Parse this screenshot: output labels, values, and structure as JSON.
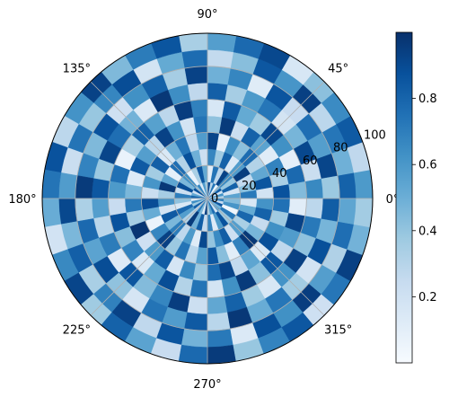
{
  "chart_data": {
    "type": "heatmap",
    "subtype": "polar",
    "colormap": "Blues",
    "title": "",
    "theta_ticks": [
      "0°",
      "45°",
      "90°",
      "135°",
      "180°",
      "225°",
      "270°",
      "315°"
    ],
    "r_ticks": [
      "0",
      "20",
      "40",
      "60",
      "80",
      "100"
    ],
    "rlim": [
      0,
      100
    ],
    "r_edges": [
      0,
      10,
      20,
      30,
      40,
      50,
      60,
      70,
      80,
      90,
      100
    ],
    "theta_bins": 36,
    "theta_bin_width_deg": 10,
    "colorbar": {
      "ticks": [
        "0.2",
        "0.4",
        "0.6",
        "0.8"
      ],
      "tick_values": [
        0.2,
        0.4,
        0.6,
        0.8
      ],
      "range": [
        0.0,
        1.0
      ],
      "position": "right"
    },
    "grid": true,
    "values": [
      [
        0.31,
        0.62,
        0.18,
        0.84,
        0.47,
        0.05,
        0.73,
        0.29,
        0.91,
        0.36,
        0.58,
        0.14,
        0.67,
        0.42,
        0.88,
        0.21,
        0.53,
        0.79,
        0.09,
        0.64,
        0.37,
        0.82,
        0.26,
        0.71,
        0.45,
        0.12,
        0.94,
        0.33,
        0.56,
        0.77,
        0.19,
        0.61,
        0.48,
        0.86,
        0.24,
        0.69
      ],
      [
        0.55,
        0.17,
        0.81,
        0.39,
        0.66,
        0.93,
        0.28,
        0.74,
        0.11,
        0.52,
        0.85,
        0.34,
        0.07,
        0.63,
        0.46,
        0.89,
        0.22,
        0.7,
        0.41,
        0.15,
        0.78,
        0.57,
        0.32,
        0.96,
        0.49,
        0.83,
        0.25,
        0.68,
        0.13,
        0.59,
        0.87,
        0.38,
        0.72,
        0.04,
        0.61,
        0.44
      ],
      [
        0.72,
        0.43,
        0.26,
        0.95,
        0.58,
        0.14,
        0.81,
        0.37,
        0.67,
        0.22,
        0.49,
        0.88,
        0.31,
        0.76,
        0.09,
        0.54,
        0.97,
        0.35,
        0.62,
        0.18,
        0.84,
        0.46,
        0.71,
        0.27,
        0.59,
        0.12,
        0.91,
        0.4,
        0.65,
        0.83,
        0.21,
        0.57,
        0.34,
        0.79,
        0.52,
        0.16
      ],
      [
        0.19,
        0.86,
        0.53,
        0.31,
        0.77,
        0.42,
        0.64,
        0.08,
        0.92,
        0.58,
        0.27,
        0.73,
        0.49,
        0.15,
        0.82,
        0.36,
        0.61,
        0.23,
        0.89,
        0.51,
        0.06,
        0.67,
        0.94,
        0.38,
        0.74,
        0.29,
        0.56,
        0.85,
        0.43,
        0.11,
        0.69,
        0.97,
        0.47,
        0.25,
        0.81,
        0.62
      ],
      [
        0.87,
        0.34,
        0.68,
        0.12,
        0.55,
        0.81,
        0.23,
        0.96,
        0.41,
        0.74,
        0.18,
        0.62,
        0.93,
        0.29,
        0.57,
        0.84,
        0.13,
        0.46,
        0.72,
        0.35,
        0.98,
        0.21,
        0.59,
        0.83,
        0.17,
        0.66,
        0.39,
        0.77,
        0.92,
        0.26,
        0.54,
        0.14,
        0.88,
        0.63,
        0.37,
        0.75
      ],
      [
        0.44,
        0.78,
        0.09,
        0.63,
        0.91,
        0.37,
        0.52,
        0.84,
        0.16,
        0.69,
        0.95,
        0.28,
        0.56,
        0.81,
        0.34,
        0.07,
        0.75,
        0.59,
        0.24,
        0.87,
        0.43,
        0.68,
        0.15,
        0.52,
        0.89,
        0.31,
        0.74,
        0.18,
        0.63,
        0.96,
        0.42,
        0.85,
        0.27,
        0.58,
        0.93,
        0.11
      ],
      [
        0.66,
        0.23,
        0.91,
        0.47,
        0.18,
        0.73,
        0.59,
        0.35,
        0.82,
        0.27,
        0.64,
        0.97,
        0.14,
        0.48,
        0.76,
        0.92,
        0.38,
        0.85,
        0.57,
        0.29,
        0.71,
        0.13,
        0.86,
        0.44,
        0.67,
        0.95,
        0.22,
        0.53,
        0.81,
        0.37,
        0.16,
        0.62,
        0.94,
        0.41,
        0.72,
        0.28
      ],
      [
        0.38,
        0.92,
        0.57,
        0.76,
        0.24,
        0.86,
        0.12,
        0.67,
        0.49,
        0.93,
        0.35,
        0.81,
        0.63,
        0.21,
        0.87,
        0.45,
        0.68,
        0.96,
        0.33,
        0.78,
        0.55,
        0.89,
        0.41,
        0.17,
        0.74,
        0.58,
        0.84,
        0.29,
        0.97,
        0.51,
        0.73,
        0.36,
        0.19,
        0.88,
        0.47,
        0.83
      ],
      [
        0.81,
        0.49,
        0.73,
        0.28,
        0.94,
        0.61,
        0.85,
        0.43,
        0.26,
        0.77,
        0.52,
        0.18,
        0.89,
        0.67,
        0.39,
        0.74,
        0.23,
        0.58,
        0.91,
        0.46,
        0.82,
        0.34,
        0.69,
        0.93,
        0.27,
        0.86,
        0.48,
        0.72,
        0.14,
        0.88,
        0.63,
        0.95,
        0.57,
        0.32,
        0.76,
        0.54
      ],
      [
        0.59,
        0.27,
        0.84,
        0.65,
        0.42,
        0.16,
        0.91,
        0.78,
        0.57,
        0.34,
        0.86,
        0.71,
        0.45,
        0.93,
        0.62,
        0.28,
        0.87,
        0.74,
        0.51,
        0.19,
        0.66,
        0.92,
        0.37,
        0.81,
        0.55,
        0.24,
        0.78,
        0.96,
        0.39,
        0.68,
        0.85,
        0.21,
        0.73,
        0.94,
        0.48,
        0.36
      ]
    ]
  }
}
